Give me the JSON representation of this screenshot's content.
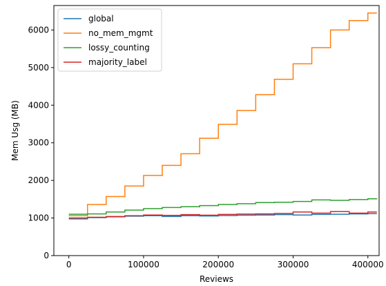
{
  "chart_data": {
    "type": "line",
    "title": "",
    "xlabel": "Reviews",
    "ylabel": "Mem Usg (MB)",
    "xlim": [
      -20000,
      415000
    ],
    "ylim": [
      0,
      6650
    ],
    "xticks": [
      0,
      100000,
      200000,
      300000,
      400000
    ],
    "xtick_labels": [
      "0",
      "100000",
      "200000",
      "300000",
      "400000"
    ],
    "yticks": [
      0,
      1000,
      2000,
      3000,
      4000,
      5000,
      6000
    ],
    "ytick_labels": [
      "0",
      "1000",
      "2000",
      "3000",
      "4000",
      "5000",
      "6000"
    ],
    "grid": false,
    "legend_position": "upper-left",
    "step": true,
    "series": [
      {
        "name": "global",
        "color": "#1f77b4",
        "x": [
          0,
          25000,
          50000,
          75000,
          100000,
          125000,
          150000,
          175000,
          200000,
          225000,
          250000,
          275000,
          300000,
          325000,
          350000,
          375000,
          400000,
          412000
        ],
        "y": [
          975,
          1010,
          1030,
          1050,
          1060,
          1040,
          1060,
          1055,
          1065,
          1075,
          1080,
          1090,
          1080,
          1095,
          1100,
          1110,
          1115,
          1115
        ]
      },
      {
        "name": "no_mem_mgmt",
        "color": "#ff7f0e",
        "x": [
          0,
          25000,
          50000,
          75000,
          100000,
          125000,
          150000,
          175000,
          200000,
          225000,
          250000,
          275000,
          300000,
          325000,
          350000,
          375000,
          400000,
          412000
        ],
        "y": [
          1060,
          1360,
          1570,
          1850,
          2130,
          2400,
          2710,
          3120,
          3490,
          3860,
          4280,
          4690,
          5100,
          5530,
          6000,
          6250,
          6450,
          6450
        ]
      },
      {
        "name": "lossy_counting",
        "color": "#2ca02c",
        "x": [
          0,
          25000,
          50000,
          75000,
          100000,
          125000,
          150000,
          175000,
          200000,
          225000,
          250000,
          275000,
          300000,
          325000,
          350000,
          375000,
          400000,
          412000
        ],
        "y": [
          1100,
          1110,
          1160,
          1210,
          1250,
          1280,
          1300,
          1330,
          1360,
          1380,
          1410,
          1420,
          1440,
          1480,
          1470,
          1490,
          1510,
          1520
        ]
      },
      {
        "name": "majority_label",
        "color": "#d62728",
        "x": [
          0,
          25000,
          50000,
          75000,
          100000,
          125000,
          150000,
          175000,
          200000,
          225000,
          250000,
          275000,
          300000,
          325000,
          350000,
          375000,
          400000,
          412000
        ],
        "y": [
          1000,
          1020,
          1040,
          1060,
          1080,
          1070,
          1090,
          1075,
          1095,
          1105,
          1110,
          1120,
          1160,
          1130,
          1170,
          1130,
          1160,
          1160
        ]
      }
    ]
  }
}
